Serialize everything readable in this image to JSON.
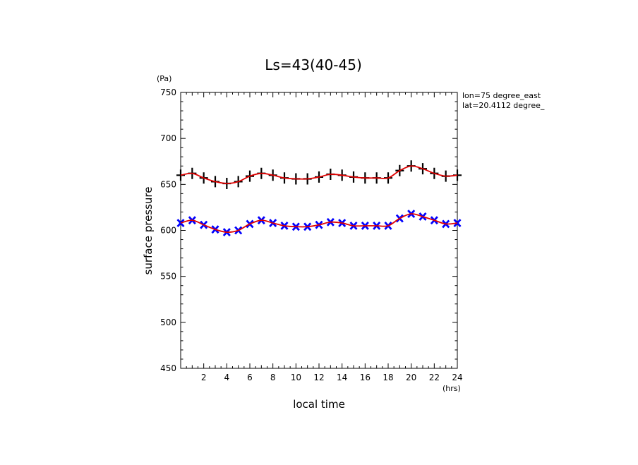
{
  "chart_data": {
    "type": "line",
    "title": "Ls=43(40-45)",
    "xlabel": "local time",
    "ylabel": "surface pressure",
    "x_unit": "(hrs)",
    "y_unit": "(Pa)",
    "xlim": [
      0,
      24
    ],
    "ylim": [
      450,
      750
    ],
    "x_ticks": [
      2,
      4,
      6,
      8,
      10,
      12,
      14,
      16,
      18,
      20,
      22,
      24
    ],
    "y_ticks": [
      450,
      500,
      550,
      600,
      650,
      700,
      750
    ],
    "grid": false,
    "annotations": [
      "lon=75 degree_east",
      "lat=20.4112 degree_"
    ],
    "x": [
      0,
      1,
      2,
      3,
      4,
      5,
      6,
      7,
      8,
      9,
      10,
      11,
      12,
      13,
      14,
      15,
      16,
      17,
      18,
      19,
      20,
      21,
      22,
      23,
      24
    ],
    "series": [
      {
        "marker": "plus",
        "color": "#000000",
        "values": [
          660,
          662,
          657,
          653,
          651,
          653,
          659,
          662,
          660,
          657,
          656,
          656,
          658,
          661,
          660,
          658,
          657,
          657,
          657,
          665,
          670,
          667,
          662,
          659,
          660
        ]
      },
      {
        "marker": "cross",
        "color": "#0000ff",
        "values": [
          608,
          611,
          606,
          601,
          598,
          600,
          607,
          611,
          608,
          605,
          604,
          604,
          606,
          609,
          608,
          605,
          605,
          605,
          605,
          613,
          618,
          615,
          611,
          607,
          608
        ]
      },
      {
        "marker": "none",
        "color": "#e00000",
        "values": [
          660,
          662,
          657,
          653,
          651,
          653,
          659,
          662,
          660,
          657,
          656,
          656,
          658,
          661,
          660,
          658,
          657,
          657,
          657,
          665,
          670,
          667,
          662,
          659,
          660
        ]
      },
      {
        "marker": "none",
        "color": "#e00000",
        "values": [
          608,
          611,
          606,
          601,
          598,
          600,
          607,
          611,
          608,
          605,
          604,
          604,
          606,
          609,
          608,
          605,
          605,
          605,
          605,
          613,
          618,
          615,
          611,
          607,
          608
        ]
      }
    ]
  }
}
